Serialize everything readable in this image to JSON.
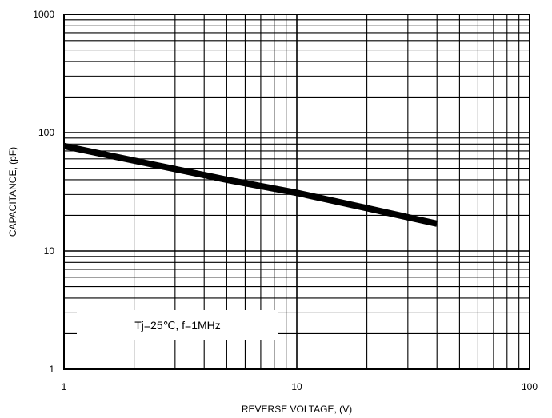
{
  "chart_data": {
    "type": "line",
    "xscale": "log",
    "yscale": "log",
    "xlim": [
      1,
      100
    ],
    "ylim": [
      1,
      1000
    ],
    "xlabel": "REVERSE VOLTAGE, (V)",
    "ylabel": "CAPACITANCE, (pF)",
    "xticks": [
      "1",
      "10",
      "100"
    ],
    "yticks": [
      "1",
      "10",
      "100",
      "1000"
    ],
    "grid": true,
    "annotation": "Tj=25℃, f=1MHz",
    "series": [
      {
        "x": [
          1,
          2,
          5,
          10,
          20,
          40
        ],
        "y": [
          77,
          58,
          40,
          31,
          23,
          17
        ]
      }
    ]
  }
}
